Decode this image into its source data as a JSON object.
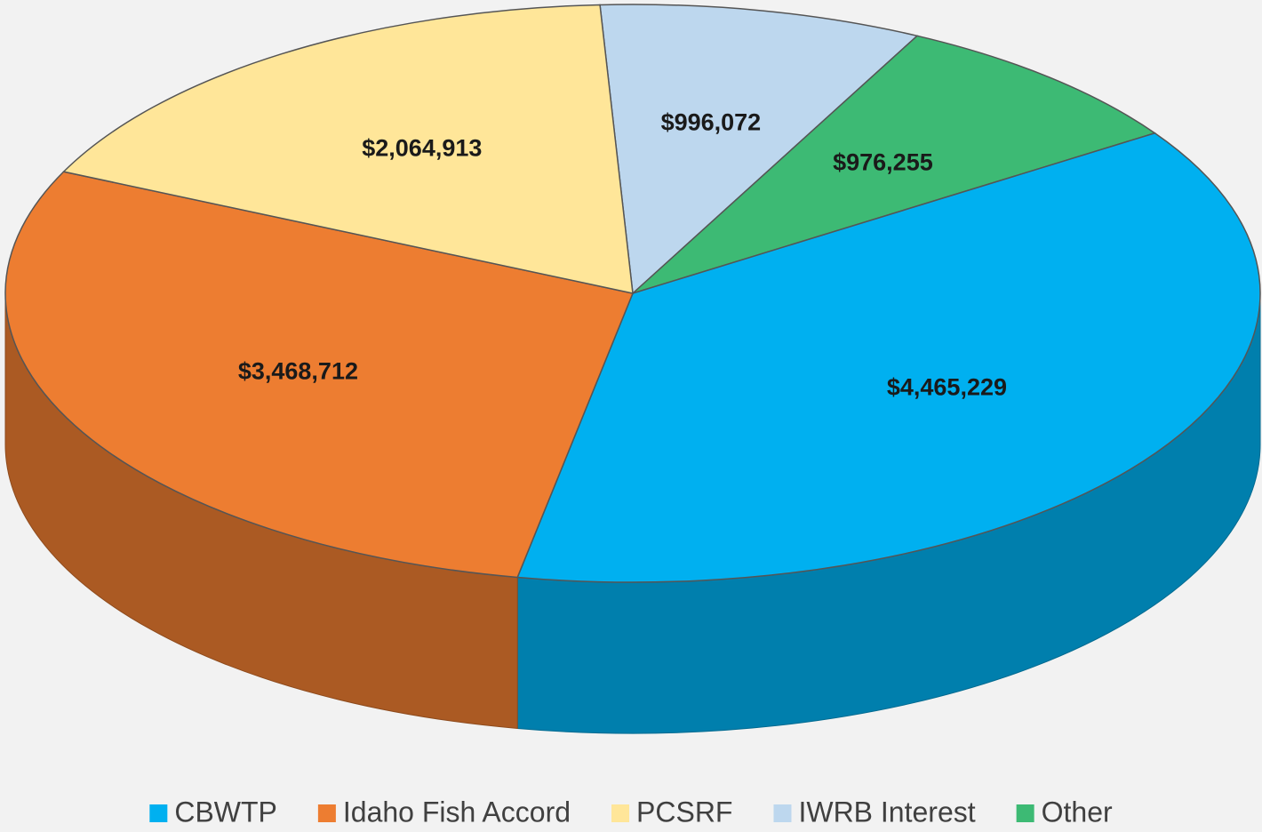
{
  "chart_data": {
    "type": "pie",
    "categories": [
      "CBWTP",
      "Idaho Fish Accord",
      "PCSRF",
      "IWRB Interest",
      "Other"
    ],
    "values": [
      4465229,
      3468712,
      2064913,
      996072,
      976255
    ],
    "value_labels": [
      "$4,465,229",
      "$3,468,712",
      "$2,064,913",
      "$996,072",
      "$976,255"
    ],
    "colors": [
      "#00b0f0",
      "#ed7d31",
      "#ffe699",
      "#bdd7ee",
      "#3dba74"
    ],
    "legend": "bottom"
  }
}
